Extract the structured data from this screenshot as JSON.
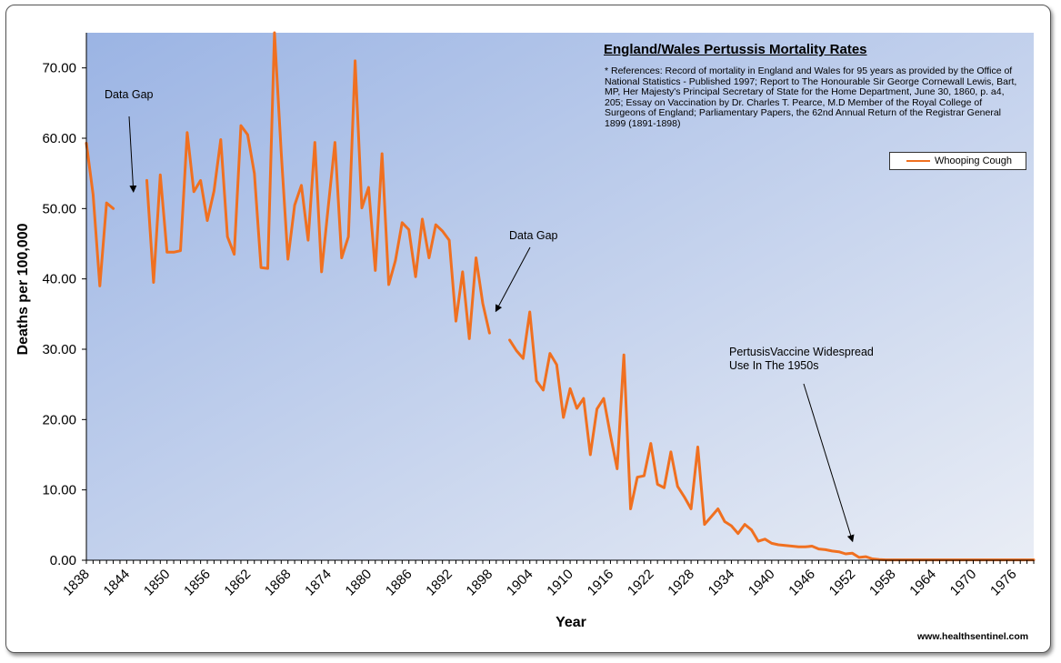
{
  "chart_data": {
    "type": "line",
    "title": "England/Wales Pertussis Mortality Rates",
    "reference_note": "* References: Record of mortality in England and Wales for 95 years as provided by the Office of National Statistics - Published 1997; Report to The Honourable Sir George Cornewall Lewis, Bart, MP, Her Majesty's Principal Secretary of State for the Home Department, June 30, 1860, p. a4, 205; Essay on Vaccination by Dr. Charles T. Pearce, M.D Member of the Royal College of Surgeons of England; Parliamentary Papers, the 62nd Annual Return of the Registrar General 1899 (1891-1898)",
    "xlabel": "Year",
    "ylabel": "Deaths per 100,000",
    "xlim": [
      1838,
      1979
    ],
    "ylim": [
      0,
      75
    ],
    "x_ticks": [
      "1838",
      "1844",
      "1850",
      "1856",
      "1862",
      "1868",
      "1874",
      "1880",
      "1886",
      "1892",
      "1898",
      "1904",
      "1910",
      "1916",
      "1922",
      "1928",
      "1934",
      "1940",
      "1946",
      "1952",
      "1958",
      "1964",
      "1970",
      "1976"
    ],
    "y_ticks": [
      "0.00",
      "10.00",
      "20.00",
      "30.00",
      "40.00",
      "50.00",
      "60.00",
      "70.00"
    ],
    "y_tick_values": [
      0,
      10,
      20,
      30,
      40,
      50,
      60,
      70
    ],
    "grid": false,
    "legend_position": "top-right",
    "series": [
      {
        "name": "Whooping Cough",
        "color": "#F07020",
        "segments": [
          [
            [
              1838,
              59.3
            ],
            [
              1839,
              52.0
            ],
            [
              1840,
              39.0
            ],
            [
              1841,
              50.8
            ],
            [
              1842,
              50.0
            ]
          ],
          [
            [
              1847,
              54.0
            ],
            [
              1848,
              39.5
            ],
            [
              1849,
              54.8
            ],
            [
              1850,
              43.8
            ],
            [
              1851,
              43.8
            ],
            [
              1852,
              44.0
            ],
            [
              1853,
              60.8
            ],
            [
              1854,
              52.4
            ],
            [
              1855,
              54.0
            ],
            [
              1856,
              48.3
            ],
            [
              1857,
              52.5
            ],
            [
              1858,
              59.8
            ],
            [
              1859,
              46.0
            ],
            [
              1860,
              43.5
            ],
            [
              1861,
              61.8
            ],
            [
              1862,
              60.5
            ],
            [
              1863,
              55.0
            ],
            [
              1864,
              41.6
            ],
            [
              1865,
              41.5
            ],
            [
              1866,
              75.0
            ],
            [
              1867,
              58.0
            ],
            [
              1868,
              42.8
            ],
            [
              1869,
              50.5
            ],
            [
              1870,
              53.3
            ],
            [
              1871,
              45.5
            ],
            [
              1872,
              59.4
            ],
            [
              1873,
              41.0
            ],
            [
              1874,
              50.2
            ],
            [
              1875,
              59.4
            ],
            [
              1876,
              43.0
            ],
            [
              1877,
              46.0
            ],
            [
              1878,
              71.0
            ],
            [
              1879,
              50.1
            ],
            [
              1880,
              53.0
            ],
            [
              1881,
              41.2
            ],
            [
              1882,
              57.8
            ],
            [
              1883,
              39.2
            ],
            [
              1884,
              42.6
            ],
            [
              1885,
              48.0
            ],
            [
              1886,
              47.0
            ],
            [
              1887,
              40.3
            ],
            [
              1888,
              48.5
            ],
            [
              1889,
              43.0
            ],
            [
              1890,
              47.7
            ],
            [
              1891,
              46.8
            ],
            [
              1892,
              45.5
            ],
            [
              1893,
              34.0
            ],
            [
              1894,
              41.0
            ],
            [
              1895,
              31.5
            ],
            [
              1896,
              43.0
            ],
            [
              1897,
              36.5
            ],
            [
              1898,
              32.3
            ]
          ],
          [
            [
              1901,
              31.3
            ],
            [
              1902,
              29.8
            ],
            [
              1903,
              28.7
            ],
            [
              1904,
              35.3
            ],
            [
              1905,
              25.5
            ],
            [
              1906,
              24.2
            ],
            [
              1907,
              29.4
            ],
            [
              1908,
              27.8
            ],
            [
              1909,
              20.3
            ],
            [
              1910,
              24.4
            ],
            [
              1911,
              21.6
            ],
            [
              1912,
              23.0
            ],
            [
              1913,
              15.0
            ],
            [
              1914,
              21.5
            ],
            [
              1915,
              23.0
            ],
            [
              1916,
              17.8
            ],
            [
              1917,
              13.0
            ],
            [
              1918,
              29.2
            ],
            [
              1919,
              7.3
            ],
            [
              1920,
              11.8
            ],
            [
              1921,
              12.0
            ],
            [
              1922,
              16.6
            ],
            [
              1923,
              10.8
            ],
            [
              1924,
              10.3
            ],
            [
              1925,
              15.4
            ],
            [
              1926,
              10.5
            ],
            [
              1927,
              9.0
            ],
            [
              1928,
              7.3
            ],
            [
              1929,
              16.1
            ],
            [
              1930,
              5.1
            ],
            [
              1931,
              6.2
            ],
            [
              1932,
              7.3
            ],
            [
              1933,
              5.5
            ],
            [
              1934,
              4.9
            ],
            [
              1935,
              3.8
            ],
            [
              1936,
              5.1
            ],
            [
              1937,
              4.3
            ],
            [
              1938,
              2.7
            ],
            [
              1939,
              3.0
            ],
            [
              1940,
              2.4
            ],
            [
              1941,
              2.2
            ],
            [
              1942,
              2.1
            ],
            [
              1943,
              2.0
            ],
            [
              1944,
              1.9
            ],
            [
              1945,
              1.9
            ],
            [
              1946,
              2.0
            ],
            [
              1947,
              1.6
            ],
            [
              1948,
              1.5
            ],
            [
              1949,
              1.3
            ],
            [
              1950,
              1.2
            ],
            [
              1951,
              0.9
            ],
            [
              1952,
              1.0
            ],
            [
              1953,
              0.4
            ],
            [
              1954,
              0.5
            ],
            [
              1955,
              0.2
            ],
            [
              1956,
              0.1
            ],
            [
              1957,
              0.05
            ],
            [
              1958,
              0.05
            ],
            [
              1959,
              0.05
            ],
            [
              1960,
              0.05
            ],
            [
              1961,
              0.05
            ],
            [
              1962,
              0.05
            ],
            [
              1963,
              0.05
            ],
            [
              1964,
              0.05
            ],
            [
              1965,
              0.05
            ],
            [
              1966,
              0.05
            ],
            [
              1967,
              0.05
            ],
            [
              1968,
              0.05
            ],
            [
              1969,
              0.05
            ],
            [
              1970,
              0.05
            ],
            [
              1971,
              0.05
            ],
            [
              1972,
              0.05
            ],
            [
              1973,
              0.05
            ],
            [
              1974,
              0.05
            ],
            [
              1975,
              0.05
            ],
            [
              1976,
              0.05
            ],
            [
              1977,
              0.05
            ],
            [
              1978,
              0.05
            ],
            [
              1979,
              0.05
            ]
          ]
        ]
      }
    ],
    "annotations": [
      {
        "text": "Data Gap",
        "points_to": [
          1845,
          52.5
        ]
      },
      {
        "text": "Data Gap",
        "points_to": [
          1899,
          35.5
        ]
      },
      {
        "text": "PertusisVaccine Widespread Use In The  1950s",
        "points_to": [
          1952,
          2.8
        ]
      }
    ],
    "background_gradient": [
      "#9BB4E4",
      "#E9EDF5"
    ]
  },
  "annotation_labels": {
    "gap1": "Data Gap",
    "gap2": "Data Gap",
    "vaccine_line1": "PertusisVaccine Widespread",
    "vaccine_line2": "Use In The  1950s"
  },
  "legend_label": "Whooping Cough",
  "watermark": "www.healthsentinel.com"
}
